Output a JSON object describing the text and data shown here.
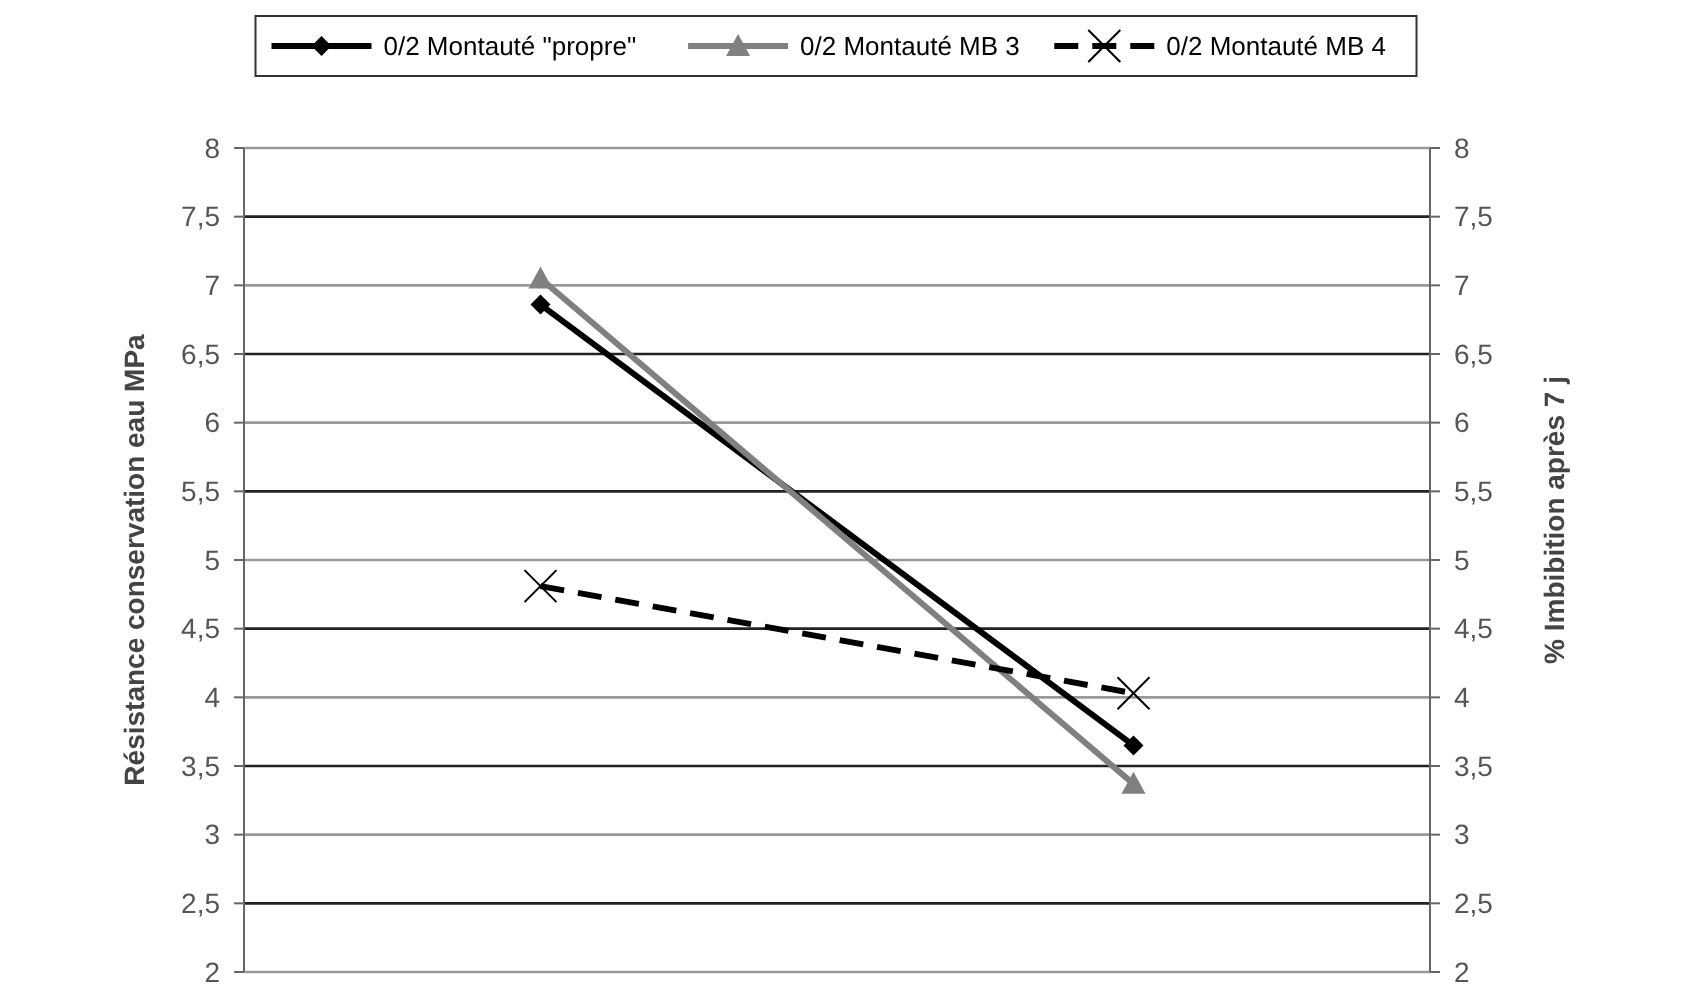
{
  "chart_data": {
    "type": "line",
    "ylabel": "Résistance conservation eau MPa",
    "y2label": "% Imbibition après 7 j",
    "categories": [
      null,
      null
    ],
    "series": [
      {
        "name": "0/2 Montauté \"propre\"",
        "color": "#000000",
        "values": [
          6.86,
          3.65
        ],
        "marker": "diamond",
        "line_style": "solid"
      },
      {
        "name": "0/2 Montauté MB 3",
        "color": "#808080",
        "values": [
          7.05,
          3.37
        ],
        "marker": "triangle",
        "line_style": "solid"
      },
      {
        "name": "0/2 Montauté MB 4",
        "color": "#000000",
        "values": [
          4.81,
          4.03
        ],
        "marker": "cross",
        "line_style": "dashed"
      }
    ],
    "ylim": [
      2,
      8
    ],
    "yticks": [
      2,
      {
        "value": 2.5,
        "label": "2,5"
      },
      3,
      {
        "value": 3.5,
        "label": "3,5"
      },
      4,
      {
        "value": 4.5,
        "label": "4,5"
      },
      5,
      {
        "value": 5.5,
        "label": "5,5"
      },
      6,
      {
        "value": 6.5,
        "label": "6,5"
      },
      7,
      {
        "value": 7.5,
        "label": "7,5"
      },
      8
    ],
    "y2lim": [
      2,
      8
    ],
    "y2ticks": [
      2,
      {
        "value": 2.5,
        "label": "2,5"
      },
      3,
      {
        "value": 3.5,
        "label": "3,5"
      },
      4,
      {
        "value": 4.5,
        "label": "4,5"
      },
      5,
      {
        "value": 5.5,
        "label": "5,5"
      },
      6,
      {
        "value": 6.5,
        "label": "6,5"
      },
      7,
      {
        "value": 7.5,
        "label": "7,5"
      },
      8
    ],
    "grid": "y",
    "legend": "top"
  }
}
